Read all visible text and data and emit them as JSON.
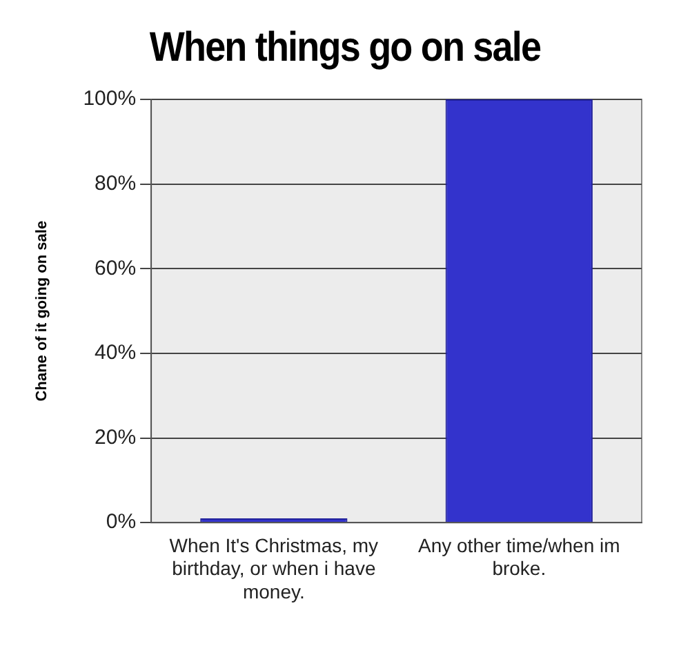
{
  "chart_data": {
    "type": "bar",
    "title": "When things go on sale",
    "ylabel": "Chane of it going on sale",
    "categories": [
      "When It's Christmas, my birthday, or when i have money.",
      "Any other time/when im broke."
    ],
    "values": [
      1,
      100
    ],
    "color": "#3333cc",
    "ylim": [
      0,
      100
    ],
    "yticks": [
      {
        "value": 0,
        "label": "0%"
      },
      {
        "value": 20,
        "label": "20%"
      },
      {
        "value": 40,
        "label": "40%"
      },
      {
        "value": 60,
        "label": "60%"
      },
      {
        "value": 80,
        "label": "80%"
      },
      {
        "value": 100,
        "label": "100%"
      }
    ],
    "grid": "y"
  }
}
